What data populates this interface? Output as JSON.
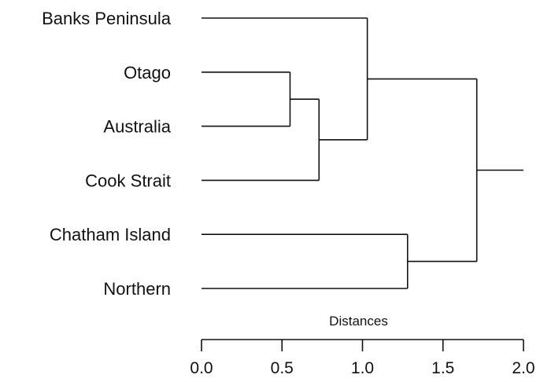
{
  "chart_data": {
    "type": "dendrogram",
    "xlabel": "Distances",
    "xlim": [
      0,
      2.0
    ],
    "ticks": [
      {
        "value": 0.0,
        "label": "0.0"
      },
      {
        "value": 0.5,
        "label": "0.5"
      },
      {
        "value": 1.0,
        "label": "1.0"
      },
      {
        "value": 1.5,
        "label": "1.5"
      },
      {
        "value": 2.0,
        "label": "2.0"
      }
    ],
    "leaves": [
      {
        "id": "bp",
        "label": "Banks Peninsula"
      },
      {
        "id": "ot",
        "label": "Otago"
      },
      {
        "id": "au",
        "label": "Australia"
      },
      {
        "id": "cs",
        "label": "Cook Strait"
      },
      {
        "id": "ch",
        "label": "Chatham Island"
      },
      {
        "id": "no",
        "label": "Northern"
      }
    ],
    "merges": [
      {
        "id": "m1",
        "children": [
          "ot",
          "au"
        ],
        "height": 0.55
      },
      {
        "id": "m2",
        "children": [
          "m1",
          "cs"
        ],
        "height": 0.73
      },
      {
        "id": "m3",
        "children": [
          "bp",
          "m2"
        ],
        "height": 1.03
      },
      {
        "id": "m4",
        "children": [
          "ch",
          "no"
        ],
        "height": 1.28
      },
      {
        "id": "m5",
        "children": [
          "m3",
          "m4"
        ],
        "height": 1.71
      }
    ],
    "root_stub_to": 2.0
  }
}
